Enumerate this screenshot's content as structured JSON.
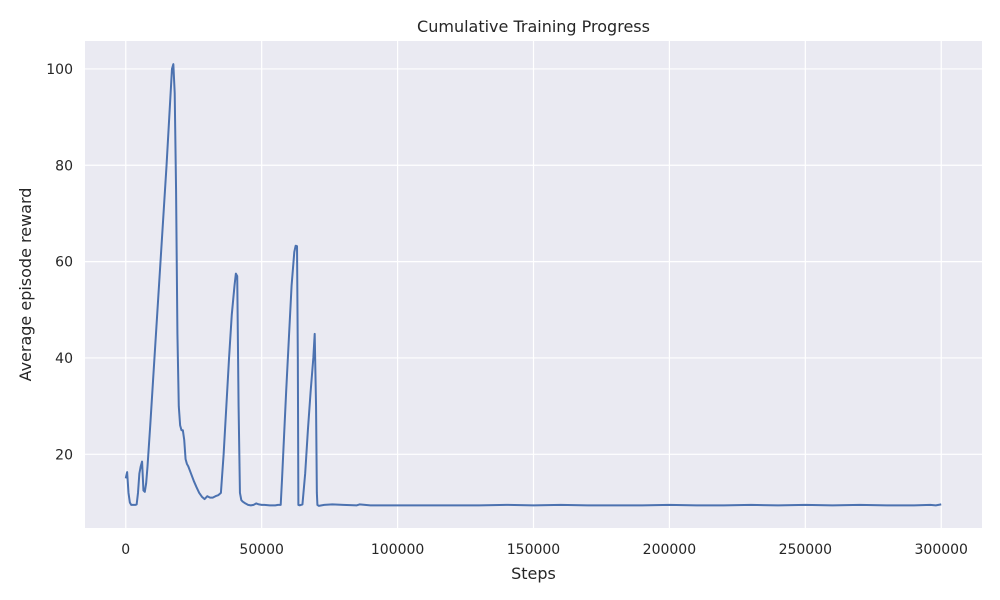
{
  "chart_data": {
    "type": "line",
    "title": "Cumulative Training Progress",
    "xlabel": "Steps",
    "ylabel": "Average episode reward",
    "xlim": [
      -15000,
      315000
    ],
    "ylim": [
      4.7,
      105.8
    ],
    "xticks": [
      0,
      50000,
      100000,
      150000,
      200000,
      250000,
      300000
    ],
    "yticks": [
      20,
      40,
      60,
      80,
      100
    ],
    "grid": true,
    "legend": "none",
    "colors": {
      "background": "#eaeaf2",
      "grid": "#ffffff",
      "line": "#4c72b0"
    },
    "series": [
      {
        "x": [
          0,
          500,
          1000,
          1500,
          2000,
          2500,
          3000,
          3500,
          4000,
          4500,
          5000,
          5500,
          6000,
          6500,
          7000,
          7500,
          8000,
          9000,
          10000,
          11000,
          12000,
          13000,
          14000,
          15000,
          16000,
          16500,
          17000,
          17500,
          18000,
          18500,
          19000,
          19500,
          20000,
          20500,
          21000,
          21500,
          22000,
          22500,
          23000,
          24000,
          25000,
          26000,
          27000,
          28000,
          29000,
          30000,
          31000,
          32000,
          33000,
          34000,
          35000,
          36000,
          37000,
          38000,
          39000,
          40000,
          40500,
          41000,
          41500,
          42000,
          42500,
          43000,
          44000,
          45000,
          46000,
          47000,
          48000,
          49000,
          50000,
          51000,
          53000,
          55000,
          56000,
          57000,
          57500,
          58000,
          59000,
          60000,
          61000,
          62000,
          62500,
          63000,
          63300,
          63500,
          64000,
          65000,
          66000,
          67000,
          68000,
          69000,
          69500,
          70000,
          70300,
          70500,
          71000,
          73000,
          76000,
          80000,
          85000,
          86000,
          90000,
          100000,
          110000,
          120000,
          130000,
          140000,
          150000,
          160000,
          170000,
          180000,
          190000,
          200000,
          210000,
          220000,
          230000,
          240000,
          250000,
          260000,
          270000,
          280000,
          290000,
          296000,
          298000,
          300000
        ],
        "values": [
          15,
          16.3,
          12,
          10,
          9.5,
          9.5,
          9.5,
          9.5,
          9.6,
          12,
          16,
          17.5,
          18.5,
          12.5,
          12.2,
          14,
          17.5,
          26,
          35,
          44,
          53,
          62,
          71,
          80,
          90,
          95,
          100,
          101,
          95,
          75,
          45,
          30,
          26,
          25,
          25,
          23,
          19,
          18,
          17.5,
          16,
          14.5,
          13.2,
          12,
          11.2,
          10.7,
          11.3,
          11,
          11,
          11.3,
          11.5,
          12,
          20,
          30,
          40,
          49,
          55,
          57.5,
          57,
          30,
          12,
          10.5,
          10.2,
          9.8,
          9.5,
          9.4,
          9.5,
          9.8,
          9.6,
          9.5,
          9.5,
          9.4,
          9.4,
          9.5,
          9.5,
          15,
          21,
          33,
          44,
          55,
          62,
          63.3,
          63.2,
          40,
          9.5,
          9.4,
          9.6,
          16,
          25,
          33,
          40,
          45,
          30,
          12,
          9.5,
          9.3,
          9.5,
          9.6,
          9.5,
          9.4,
          9.6,
          9.4,
          9.4,
          9.4,
          9.4,
          9.4,
          9.5,
          9.4,
          9.5,
          9.4,
          9.4,
          9.4,
          9.5,
          9.4,
          9.4,
          9.5,
          9.4,
          9.5,
          9.4,
          9.5,
          9.4,
          9.4,
          9.5,
          9.4,
          9.6
        ]
      }
    ]
  }
}
